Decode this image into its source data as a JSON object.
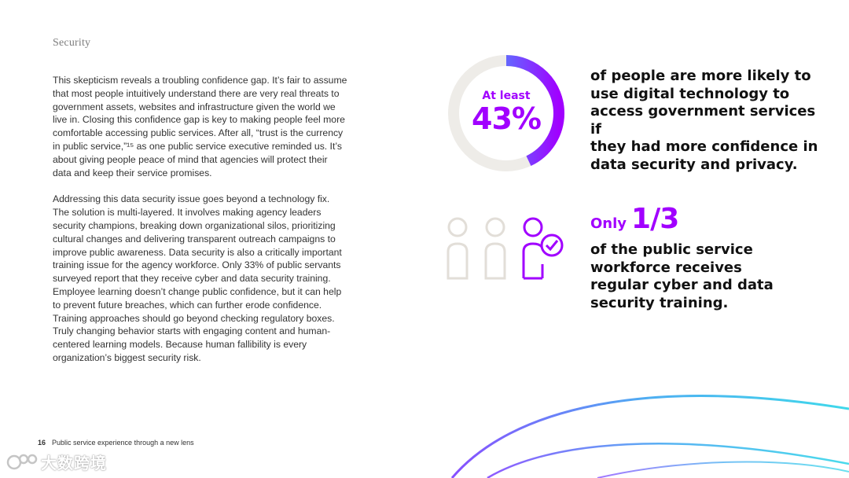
{
  "section": {
    "label": "Security"
  },
  "body": {
    "paragraph1": "This skepticism reveals a troubling confidence gap. It’s fair to assume\nthat most people intuitively understand there are very real threats to\ngovernment assets, websites and infrastructure given the world we\nlive in. Closing this confidence gap is key to making people feel more\ncomfortable accessing public services. After all, “trust is the currency\nin public service,”¹⁵ as one public service executive reminded us. It’s\nabout giving people peace of mind that agencies will protect their\ndata and keep their service promises.",
    "paragraph2": "Addressing this data security issue goes beyond a technology fix.\nThe solution is multi-layered. It involves making agency leaders\nsecurity champions, breaking down organizational silos, prioritizing\ncultural changes and delivering transparent outreach campaigns to\nimprove public awareness. Data security is also a critically important\ntraining issue for the agency workforce. Only 33% of public servants\nsurveyed report that they receive cyber and data security training.\nEmployee learning doesn’t change public confidence, but it can help\nto prevent future breaches, which can further erode confidence.\nTraining approaches should go beyond checking regulatory boxes.\nTruly changing behavior starts with engaging content and human-\ncentered learning models. Because human fallibility is every\norganization’s biggest security risk."
  },
  "stat1": {
    "prefix": "At least",
    "value": "43%",
    "fraction": 0.43,
    "text": "of people are more likely to\nuse digital technology to\naccess government services if\nthey had more confidence in\ndata security and privacy."
  },
  "stat2": {
    "prefix": "Only",
    "value": "1/3",
    "people_total": 3,
    "people_highlighted": 1,
    "text": "of the public service\nworkforce receives\nregular cyber and data\nsecurity training."
  },
  "footer": {
    "page_number": "16",
    "title": "Public service experience through a new lens"
  },
  "watermark": {
    "text": "大数跨境"
  },
  "colors": {
    "accent_purple": "#a100ff",
    "accent_cyan": "#2ad4e8",
    "track_gray": "#eeece8",
    "icon_gray": "#e2ded8"
  }
}
